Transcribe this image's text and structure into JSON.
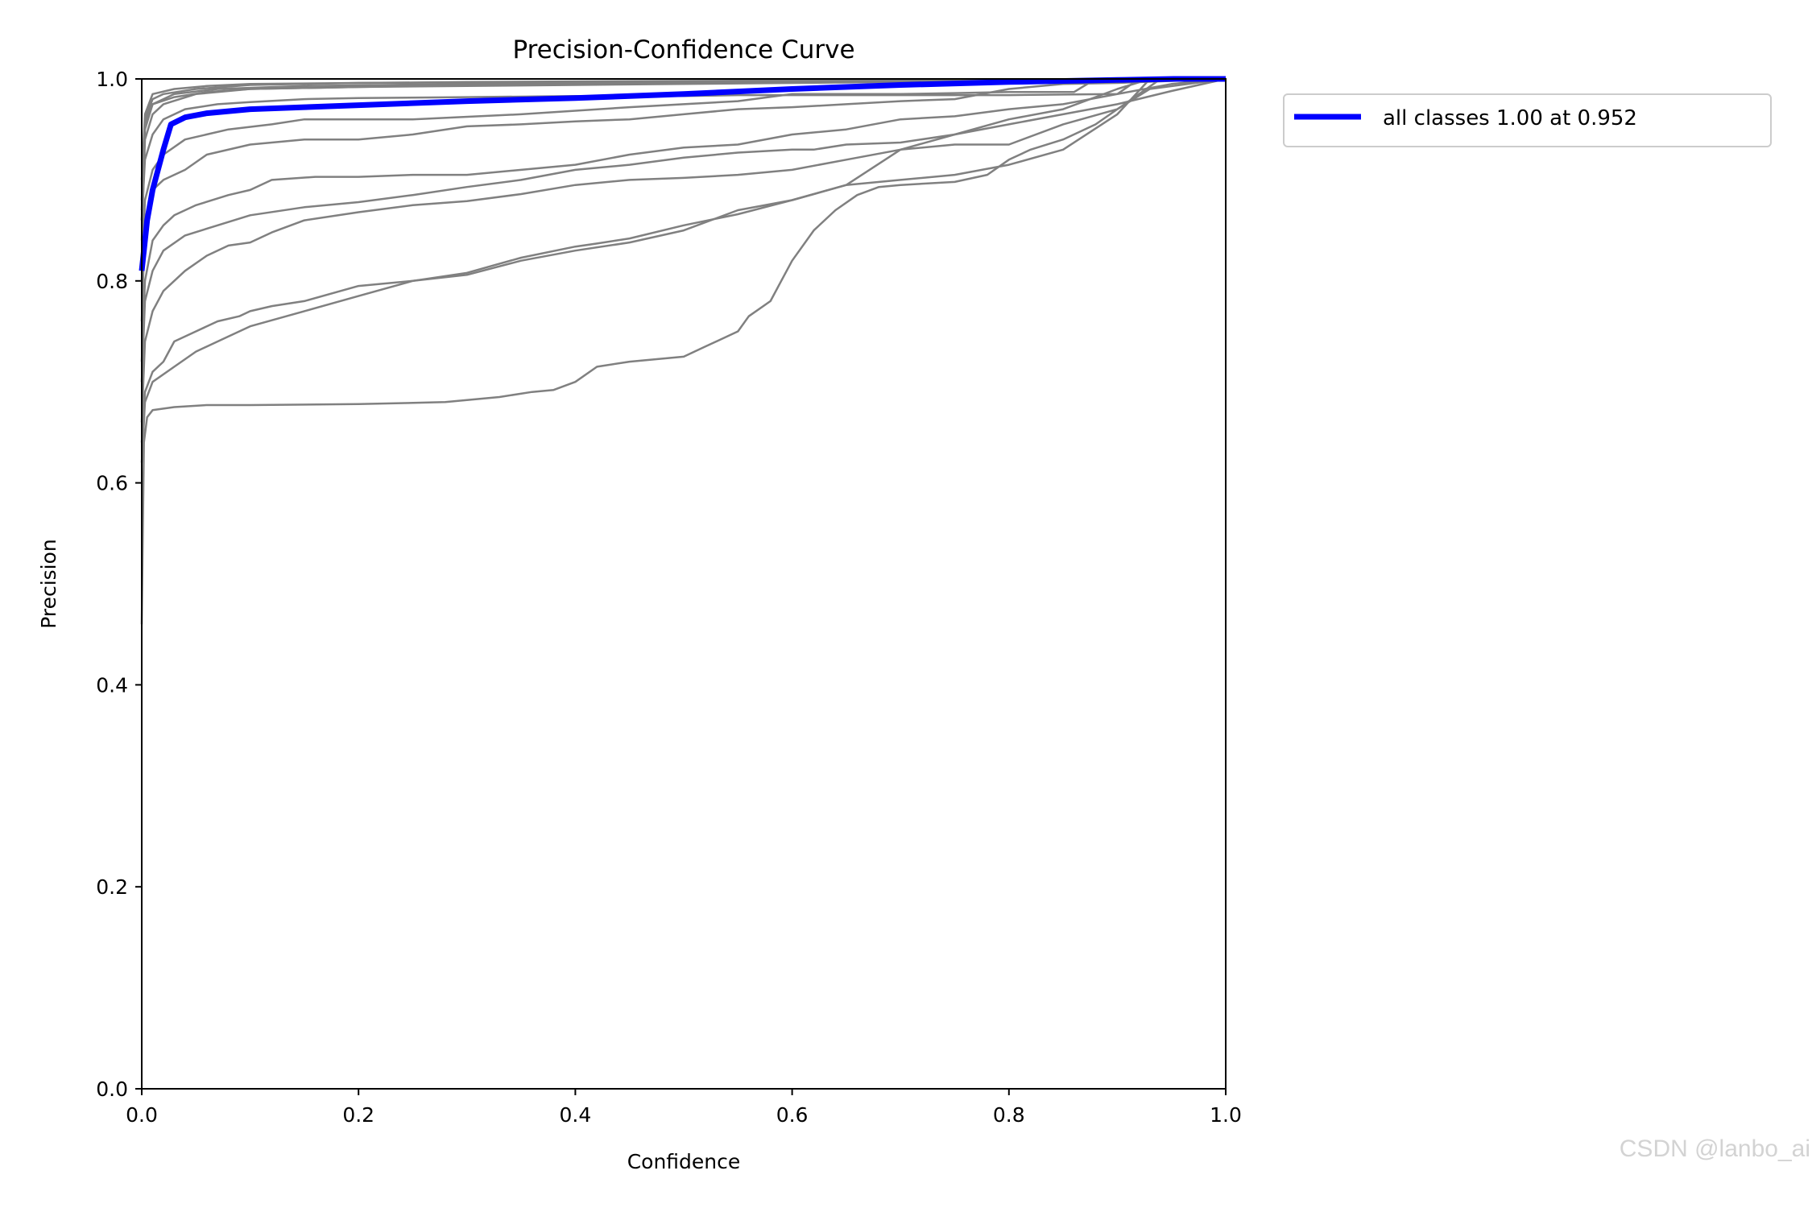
{
  "chart_data": {
    "type": "line",
    "title": "Precision-Confidence Curve",
    "xlabel": "Confidence",
    "ylabel": "Precision",
    "xlim": [
      0,
      1
    ],
    "ylim": [
      0,
      1
    ],
    "x_ticks": [
      "0.0",
      "0.2",
      "0.4",
      "0.6",
      "0.8",
      "1.0"
    ],
    "y_ticks": [
      "0.0",
      "0.2",
      "0.4",
      "0.6",
      "0.8",
      "1.0"
    ],
    "grid": false,
    "legend_position": "outside-top-right",
    "colors": {
      "class_curves": "#808080",
      "all_classes": "#0000ff"
    },
    "series": [
      {
        "name": "",
        "role": "class",
        "x": [
          0,
          0.003,
          0.01,
          0.02,
          0.05,
          0.1,
          0.2,
          0.3,
          0.5,
          0.7,
          1.0
        ],
        "y": [
          0.88,
          0.96,
          0.98,
          0.985,
          0.99,
          0.994,
          0.996,
          0.997,
          0.998,
          0.999,
          1.0
        ]
      },
      {
        "name": "",
        "role": "class",
        "x": [
          0,
          0.003,
          0.01,
          0.03,
          0.06,
          0.1,
          0.2,
          0.4,
          0.6,
          0.8,
          1.0
        ],
        "y": [
          0.9,
          0.965,
          0.985,
          0.99,
          0.993,
          0.995,
          0.996,
          0.997,
          0.998,
          0.999,
          1.0
        ]
      },
      {
        "name": "",
        "role": "class",
        "x": [
          0,
          0.003,
          0.01,
          0.03,
          0.07,
          0.15,
          0.3,
          0.5,
          0.7,
          1.0
        ],
        "y": [
          0.86,
          0.95,
          0.975,
          0.985,
          0.99,
          0.993,
          0.995,
          0.997,
          0.998,
          1.0
        ]
      },
      {
        "name": "",
        "role": "class",
        "x": [
          0,
          0.003,
          0.01,
          0.03,
          0.06,
          0.1,
          0.2,
          0.4,
          0.6,
          1.0
        ],
        "y": [
          0.87,
          0.955,
          0.975,
          0.982,
          0.987,
          0.99,
          0.992,
          0.994,
          0.996,
          1.0
        ]
      },
      {
        "name": "",
        "role": "class",
        "x": [
          0,
          0.003,
          0.01,
          0.02,
          0.05,
          0.1,
          0.2,
          0.3,
          0.5,
          0.7,
          1.0
        ],
        "y": [
          0.84,
          0.94,
          0.965,
          0.975,
          0.985,
          0.99,
          0.992,
          0.994,
          0.996,
          0.998,
          1.0
        ]
      },
      {
        "name": "",
        "role": "class",
        "x": [
          0,
          0.003,
          0.01,
          0.02,
          0.04,
          0.07,
          0.1,
          0.15,
          0.2,
          0.3,
          0.4,
          0.5,
          0.55,
          0.6,
          0.7,
          0.8,
          0.9,
          0.92,
          1.0
        ],
        "y": [
          0.86,
          0.92,
          0.945,
          0.96,
          0.97,
          0.975,
          0.977,
          0.98,
          0.981,
          0.982,
          0.983,
          0.983,
          0.984,
          0.984,
          0.984,
          0.984,
          0.985,
          1.0,
          1.0
        ]
      },
      {
        "name": "",
        "role": "class",
        "x": [
          0,
          0.003,
          0.01,
          0.02,
          0.04,
          0.08,
          0.12,
          0.15,
          0.25,
          0.35,
          0.45,
          0.55,
          0.6,
          0.7,
          0.75,
          0.8,
          0.86,
          0.88,
          1.0
        ],
        "y": [
          0.8,
          0.88,
          0.91,
          0.925,
          0.94,
          0.95,
          0.955,
          0.96,
          0.96,
          0.965,
          0.972,
          0.978,
          0.985,
          0.985,
          0.986,
          0.987,
          0.987,
          1.0,
          1.0
        ]
      },
      {
        "name": "",
        "role": "class",
        "x": [
          0,
          0.003,
          0.01,
          0.02,
          0.04,
          0.06,
          0.1,
          0.15,
          0.2,
          0.25,
          0.3,
          0.35,
          0.4,
          0.45,
          0.5,
          0.55,
          0.6,
          0.65,
          0.7,
          0.75,
          0.8,
          0.85,
          0.9,
          0.95,
          1.0
        ],
        "y": [
          0.76,
          0.86,
          0.89,
          0.9,
          0.91,
          0.925,
          0.935,
          0.94,
          0.94,
          0.945,
          0.953,
          0.955,
          0.958,
          0.96,
          0.965,
          0.97,
          0.972,
          0.975,
          0.978,
          0.98,
          0.99,
          0.995,
          0.996,
          0.998,
          1.0
        ]
      },
      {
        "name": "",
        "role": "class",
        "x": [
          0,
          0.003,
          0.01,
          0.02,
          0.03,
          0.05,
          0.08,
          0.1,
          0.12,
          0.16,
          0.2,
          0.25,
          0.3,
          0.35,
          0.4,
          0.45,
          0.5,
          0.55,
          0.6,
          0.65,
          0.7,
          0.75,
          0.8,
          0.85,
          0.9,
          0.95,
          1.0
        ],
        "y": [
          0.72,
          0.8,
          0.84,
          0.855,
          0.865,
          0.875,
          0.885,
          0.89,
          0.9,
          0.903,
          0.903,
          0.905,
          0.905,
          0.91,
          0.915,
          0.925,
          0.932,
          0.935,
          0.945,
          0.95,
          0.96,
          0.963,
          0.97,
          0.975,
          0.985,
          0.995,
          1.0
        ]
      },
      {
        "name": "",
        "role": "class",
        "x": [
          0,
          0.003,
          0.01,
          0.02,
          0.04,
          0.07,
          0.1,
          0.15,
          0.2,
          0.25,
          0.3,
          0.35,
          0.4,
          0.45,
          0.5,
          0.55,
          0.6,
          0.62,
          0.65,
          0.7,
          0.75,
          0.8,
          0.85,
          0.9,
          0.95,
          1.0
        ],
        "y": [
          0.7,
          0.78,
          0.81,
          0.83,
          0.845,
          0.855,
          0.865,
          0.873,
          0.878,
          0.885,
          0.893,
          0.9,
          0.91,
          0.915,
          0.922,
          0.927,
          0.93,
          0.93,
          0.935,
          0.937,
          0.945,
          0.955,
          0.965,
          0.975,
          0.988,
          1.0
        ]
      },
      {
        "name": "",
        "role": "class",
        "x": [
          0,
          0.003,
          0.01,
          0.02,
          0.04,
          0.06,
          0.08,
          0.1,
          0.12,
          0.15,
          0.2,
          0.25,
          0.3,
          0.35,
          0.4,
          0.45,
          0.5,
          0.55,
          0.6,
          0.65,
          0.7,
          0.75,
          0.8,
          0.85,
          0.9,
          0.93,
          1.0
        ],
        "y": [
          0.66,
          0.74,
          0.77,
          0.79,
          0.81,
          0.825,
          0.835,
          0.838,
          0.848,
          0.86,
          0.868,
          0.875,
          0.879,
          0.886,
          0.895,
          0.9,
          0.902,
          0.905,
          0.91,
          0.92,
          0.93,
          0.945,
          0.96,
          0.97,
          0.99,
          1.0,
          1.0
        ]
      },
      {
        "name": "",
        "role": "class",
        "x": [
          0,
          0.003,
          0.01,
          0.02,
          0.03,
          0.05,
          0.07,
          0.09,
          0.1,
          0.12,
          0.15,
          0.2,
          0.25,
          0.3,
          0.35,
          0.4,
          0.42,
          0.45,
          0.5,
          0.55,
          0.6,
          0.65,
          0.7,
          0.75,
          0.8,
          0.85,
          0.9,
          0.94,
          1.0
        ],
        "y": [
          0.64,
          0.69,
          0.71,
          0.72,
          0.74,
          0.75,
          0.76,
          0.765,
          0.77,
          0.775,
          0.78,
          0.795,
          0.8,
          0.808,
          0.823,
          0.834,
          0.837,
          0.842,
          0.855,
          0.866,
          0.88,
          0.895,
          0.93,
          0.935,
          0.935,
          0.955,
          0.97,
          1.0,
          1.0
        ]
      },
      {
        "name": "",
        "role": "class",
        "x": [
          0,
          0.003,
          0.01,
          0.03,
          0.05,
          0.08,
          0.1,
          0.15,
          0.2,
          0.25,
          0.3,
          0.35,
          0.4,
          0.45,
          0.5,
          0.55,
          0.6,
          0.65,
          0.7,
          0.75,
          0.8,
          0.85,
          0.9,
          0.93,
          1.0
        ],
        "y": [
          0.62,
          0.68,
          0.7,
          0.715,
          0.73,
          0.745,
          0.755,
          0.77,
          0.785,
          0.8,
          0.806,
          0.82,
          0.83,
          0.838,
          0.85,
          0.87,
          0.88,
          0.895,
          0.9,
          0.905,
          0.915,
          0.93,
          0.965,
          1.0,
          1.0
        ]
      },
      {
        "name": "",
        "role": "class",
        "x": [
          0,
          0.002,
          0.005,
          0.01,
          0.03,
          0.06,
          0.1,
          0.2,
          0.28,
          0.33,
          0.36,
          0.38,
          0.4,
          0.42,
          0.45,
          0.5,
          0.52,
          0.55,
          0.56,
          0.58,
          0.59,
          0.6,
          0.62,
          0.64,
          0.66,
          0.68,
          0.7,
          0.75,
          0.78,
          0.8,
          0.82,
          0.85,
          0.88,
          0.9,
          0.93,
          1.0
        ],
        "y": [
          0.46,
          0.64,
          0.665,
          0.672,
          0.675,
          0.677,
          0.677,
          0.678,
          0.68,
          0.685,
          0.69,
          0.692,
          0.7,
          0.715,
          0.72,
          0.725,
          0.735,
          0.75,
          0.765,
          0.78,
          0.8,
          0.82,
          0.85,
          0.87,
          0.885,
          0.893,
          0.895,
          0.898,
          0.905,
          0.92,
          0.93,
          0.94,
          0.955,
          0.97,
          0.99,
          1.0
        ]
      },
      {
        "name": "all classes 1.00 at 0.952",
        "role": "all",
        "x": [
          0,
          0.005,
          0.01,
          0.02,
          0.027,
          0.04,
          0.06,
          0.1,
          0.15,
          0.2,
          0.3,
          0.4,
          0.5,
          0.6,
          0.7,
          0.8,
          0.9,
          0.952,
          1.0
        ],
        "y": [
          0.81,
          0.86,
          0.89,
          0.93,
          0.955,
          0.962,
          0.966,
          0.97,
          0.972,
          0.974,
          0.978,
          0.981,
          0.985,
          0.99,
          0.994,
          0.997,
          0.999,
          1.0,
          1.0
        ]
      }
    ],
    "legend": [
      {
        "label": "all classes 1.00 at 0.952"
      }
    ],
    "watermark": "CSDN @lanbo_ai"
  }
}
